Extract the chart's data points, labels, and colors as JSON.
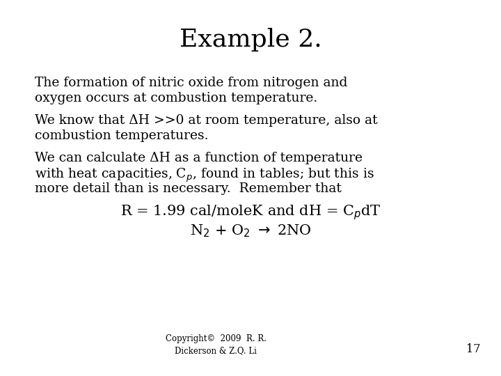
{
  "title": "Example 2.",
  "title_fontsize": 26,
  "title_font": "serif",
  "bg_color": "#ffffff",
  "text_color": "#000000",
  "body_fontsize": 13.5,
  "body_font": "serif",
  "para1_line1": "The formation of nitric oxide from nitrogen and",
  "para1_line2": "oxygen occurs at combustion temperature.",
  "para2_line1": "We know that ΔH >>0 at room temperature, also at",
  "para2_line2": "combustion temperatures.",
  "para3_line1": "We can calculate ΔH as a function of temperature",
  "para3_line2": "with heat capacities, C$_p$, found in tables; but this is",
  "para3_line3": "more detail than is necessary.  Remember that",
  "eq1": "R = 1.99 cal/moleK and dH = C$_p$dT",
  "eq2": "N$_2$ + O$_2$ $\\rightarrow$ 2NO",
  "copyright": "Copyright©  2009  R. R.\nDickerson & Z.Q. Li",
  "page_num": "17",
  "copyright_fontsize": 8.5,
  "eq_fontsize": 15
}
